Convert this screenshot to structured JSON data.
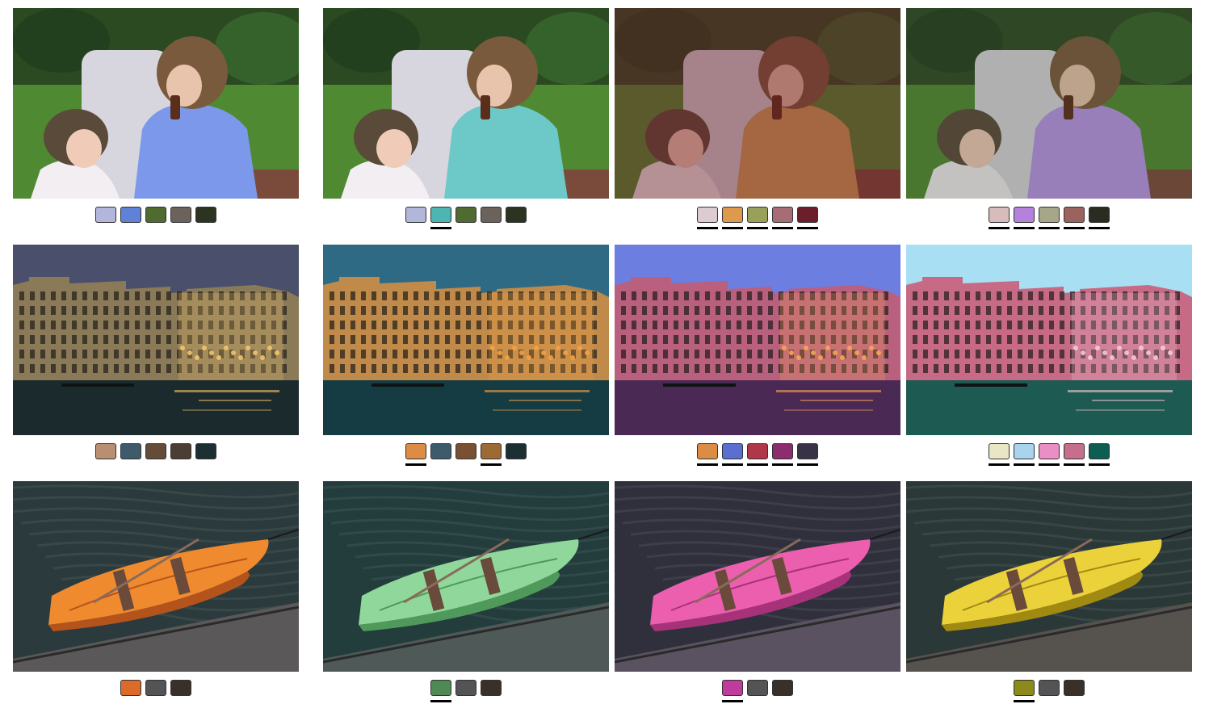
{
  "rows": [
    {
      "scene": "children",
      "cells": [
        {
          "tint": "#7a8ed9",
          "tint_opacity": 0.0,
          "garment": "#7b98ea",
          "palette": [
            {
              "color": "#b2b6da",
              "edited": false
            },
            {
              "color": "#5f81d8",
              "edited": false
            },
            {
              "color": "#4f6b30",
              "edited": false
            },
            {
              "color": "#6b625b",
              "edited": false
            },
            {
              "color": "#2c3321",
              "edited": false
            }
          ]
        },
        {
          "tint": "#3a5a3a",
          "tint_opacity": 0.0,
          "garment": "#6cc9c7",
          "palette": [
            {
              "color": "#b2b6da",
              "edited": false
            },
            {
              "color": "#4db6b2",
              "edited": true
            },
            {
              "color": "#4f6b30",
              "edited": false
            },
            {
              "color": "#6b625b",
              "edited": false
            },
            {
              "color": "#2c3321",
              "edited": false
            }
          ]
        },
        {
          "tint": "#6b1e26",
          "tint_opacity": 0.45,
          "garment": "#d6a35a",
          "palette": [
            {
              "color": "#dcccd2",
              "edited": true
            },
            {
              "color": "#dd9a4c",
              "edited": true
            },
            {
              "color": "#98a05a",
              "edited": true
            },
            {
              "color": "#a76c76",
              "edited": true
            },
            {
              "color": "#6c1f2a",
              "edited": true
            }
          ]
        },
        {
          "tint": "#3b3f2c",
          "tint_opacity": 0.25,
          "garment": "#b995e8",
          "palette": [
            {
              "color": "#d8bcbc",
              "edited": true
            },
            {
              "color": "#b482dc",
              "edited": true
            },
            {
              "color": "#a6a689",
              "edited": true
            },
            {
              "color": "#9b625e",
              "edited": true
            },
            {
              "color": "#2a2c22",
              "edited": true
            }
          ]
        }
      ]
    },
    {
      "scene": "venice",
      "cells": [
        {
          "sky": "#4a4f6b",
          "facade": "#8a7a58",
          "light": "#f2c56a",
          "water": "#1b2a2c",
          "palette": [
            {
              "color": "#b98f72",
              "edited": false
            },
            {
              "color": "#3e5b6c",
              "edited": false
            },
            {
              "color": "#634c39",
              "edited": false
            },
            {
              "color": "#4b3e32",
              "edited": false
            },
            {
              "color": "#1c2f33",
              "edited": false
            }
          ]
        },
        {
          "sky": "#2f6a84",
          "facade": "#c08a4a",
          "light": "#f4a245",
          "water": "#143c42",
          "palette": [
            {
              "color": "#dc8c45",
              "edited": true
            },
            {
              "color": "#3e5b6c",
              "edited": false
            },
            {
              "color": "#7a5033",
              "edited": false
            },
            {
              "color": "#9c6a32",
              "edited": true
            },
            {
              "color": "#1c2f33",
              "edited": false
            }
          ]
        },
        {
          "sky": "#6c7fe0",
          "facade": "#b8607e",
          "light": "#f8a555",
          "water": "#4a2a55",
          "palette": [
            {
              "color": "#db8c45",
              "edited": true
            },
            {
              "color": "#5a6fd0",
              "edited": true
            },
            {
              "color": "#b0374a",
              "edited": true
            },
            {
              "color": "#8b2d6e",
              "edited": true
            },
            {
              "color": "#383446",
              "edited": true
            }
          ]
        },
        {
          "sky": "#a9dff2",
          "facade": "#c66a86",
          "light": "#f5c9d8",
          "water": "#1c5a52",
          "palette": [
            {
              "color": "#e8e6c4",
              "edited": true
            },
            {
              "color": "#a8d4ee",
              "edited": true
            },
            {
              "color": "#ea8ec6",
              "edited": true
            },
            {
              "color": "#c66e8c",
              "edited": true
            },
            {
              "color": "#0d5e52",
              "edited": true
            }
          ]
        }
      ]
    },
    {
      "scene": "boat",
      "cells": [
        {
          "boat": "#f08a2e",
          "boat_dark": "#b4531c",
          "water": "#2b3a3c",
          "pier": "#5a5858",
          "palette": [
            {
              "color": "#dc6a28",
              "edited": false
            },
            {
              "color": "#545456",
              "edited": false
            },
            {
              "color": "#3a302a",
              "edited": false
            }
          ]
        },
        {
          "boat": "#8fd79a",
          "boat_dark": "#4f9a5a",
          "water": "#233c3c",
          "pier": "#4f5a58",
          "palette": [
            {
              "color": "#4f8a55",
              "edited": true
            },
            {
              "color": "#545456",
              "edited": false
            },
            {
              "color": "#3a302a",
              "edited": false
            }
          ]
        },
        {
          "boat": "#ec5fae",
          "boat_dark": "#a8327a",
          "water": "#30303d",
          "pier": "#5a5260",
          "palette": [
            {
              "color": "#c03c9c",
              "edited": true
            },
            {
              "color": "#545456",
              "edited": false
            },
            {
              "color": "#3a302a",
              "edited": false
            }
          ]
        },
        {
          "boat": "#ecd23a",
          "boat_dark": "#a08a12",
          "water": "#2b3838",
          "pier": "#56524e",
          "palette": [
            {
              "color": "#8c8a1a",
              "edited": true
            },
            {
              "color": "#545456",
              "edited": false
            },
            {
              "color": "#3a302a",
              "edited": false
            }
          ]
        }
      ]
    }
  ]
}
